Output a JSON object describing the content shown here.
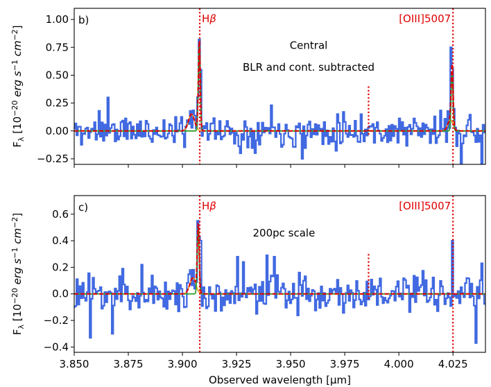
{
  "chart_data": [
    {
      "type": "line",
      "panel_label": "b)",
      "annotations": [
        "Central",
        "BLR and cont. subtracted"
      ],
      "ylabel": "F_λ [10^-20 erg s^-1 cm^-2]",
      "xlim": [
        3.85,
        4.04
      ],
      "ylim": [
        -0.3,
        1.1
      ],
      "yticks": [
        -0.25,
        0.0,
        0.25,
        0.5,
        0.75,
        1.0
      ],
      "ytick_labels": [
        "−0.25",
        "0.00",
        "0.25",
        "0.50",
        "0.75",
        "1.00"
      ],
      "line_markers": [
        {
          "label": "Hβ",
          "x": 3.908,
          "y0": -0.3,
          "y1": 1.1
        },
        {
          "label": "",
          "x": 3.986,
          "y0": -0.05,
          "y1": 0.4
        },
        {
          "label": "[OIII]5007",
          "x": 4.025,
          "y0": -0.3,
          "y1": 1.1
        }
      ],
      "colors": {
        "data": "#4169e1",
        "total": "#e00000",
        "narrow": "#2ca02c",
        "broad": "#f0a030"
      },
      "seed": 11,
      "noise": 0.1,
      "features": [
        {
          "x": 3.8555,
          "y": 0.02
        },
        {
          "x": 3.8615,
          "y": 0.18
        },
        {
          "x": 3.8655,
          "y": 0.3
        },
        {
          "x": 3.9039,
          "y": 0.18
        },
        {
          "x": 3.9079,
          "y": 0.82
        },
        {
          "x": 3.9087,
          "y": 0.55
        },
        {
          "x": 3.9268,
          "y": -0.2
        },
        {
          "x": 3.9408,
          "y": 0.23
        },
        {
          "x": 3.9555,
          "y": -0.25
        },
        {
          "x": 3.9745,
          "y": 0.17
        },
        {
          "x": 3.9828,
          "y": 0.15
        },
        {
          "x": 4.0244,
          "y": 0.75
        },
        {
          "x": 4.0252,
          "y": 0.2
        },
        {
          "x": 4.0285,
          "y": -0.3
        },
        {
          "x": 4.0318,
          "y": 0.05
        },
        {
          "x": 4.0385,
          "y": -0.3
        }
      ],
      "components": [
        {
          "kind": "narrow",
          "center": 3.9078,
          "amp": 0.8,
          "sigma": 0.00045
        },
        {
          "kind": "broad",
          "center": 3.9042,
          "amp": 0.15,
          "sigma": 0.0014
        },
        {
          "kind": "narrow",
          "center": 4.0246,
          "amp": 0.52,
          "sigma": 0.00045
        },
        {
          "kind": "broad",
          "center": 4.0238,
          "amp": 0.1,
          "sigma": 0.0012
        }
      ]
    },
    {
      "type": "line",
      "panel_label": "c)",
      "annotations": [
        "200pc scale"
      ],
      "xlabel": "Observed wavelength [μm]",
      "ylabel": "F_λ [10^-20 erg s^-1 cm^-2]",
      "xlim": [
        3.85,
        4.04
      ],
      "ylim": [
        -0.44,
        0.74
      ],
      "xticks": [
        3.85,
        3.875,
        3.9,
        3.925,
        3.95,
        3.975,
        4.0,
        4.025
      ],
      "xtick_labels": [
        "3.850",
        "3.875",
        "3.900",
        "3.925",
        "3.950",
        "3.975",
        "4.000",
        "4.025"
      ],
      "yticks": [
        -0.4,
        -0.2,
        0.0,
        0.2,
        0.4,
        0.6
      ],
      "ytick_labels": [
        "−0.4",
        "−0.2",
        "0.0",
        "0.2",
        "0.4",
        "0.6"
      ],
      "line_markers": [
        {
          "label": "Hβ",
          "x": 3.908,
          "y0": -0.44,
          "y1": 0.74
        },
        {
          "label": "",
          "x": 3.986,
          "y0": -0.05,
          "y1": 0.3
        },
        {
          "label": "[OIII]5007",
          "x": 4.025,
          "y0": -0.44,
          "y1": 0.74
        }
      ],
      "colors": {
        "data": "#4169e1",
        "total": "#e00000",
        "narrow": "#2ca02c",
        "broad": "#f0a030"
      },
      "seed": 23,
      "noise": 0.1,
      "features": [
        {
          "x": 3.8575,
          "y": -0.33
        },
        {
          "x": 3.8675,
          "y": -0.3
        },
        {
          "x": 3.8725,
          "y": 0.19
        },
        {
          "x": 3.8815,
          "y": 0.22
        },
        {
          "x": 3.9072,
          "y": 0.55
        },
        {
          "x": 3.9082,
          "y": 0.4
        },
        {
          "x": 3.9252,
          "y": 0.28
        },
        {
          "x": 3.9284,
          "y": 0.24
        },
        {
          "x": 3.9389,
          "y": 0.29
        },
        {
          "x": 3.9425,
          "y": 0.28
        },
        {
          "x": 3.9542,
          "y": 0.16
        },
        {
          "x": 4.0245,
          "y": 0.4
        },
        {
          "x": 4.0355,
          "y": -0.37
        },
        {
          "x": 4.0385,
          "y": 0.23
        }
      ],
      "components": [
        {
          "kind": "narrow",
          "center": 3.9073,
          "amp": 0.5,
          "sigma": 0.00045
        },
        {
          "kind": "broad",
          "center": 3.9048,
          "amp": 0.12,
          "sigma": 0.0014
        }
      ]
    }
  ]
}
